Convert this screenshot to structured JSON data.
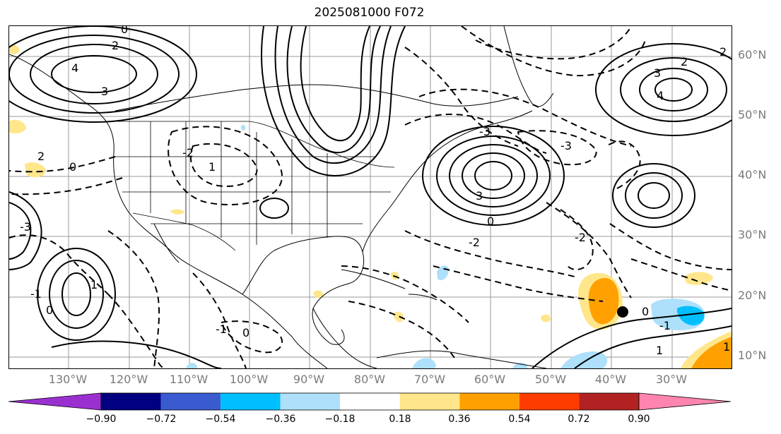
{
  "title": "2025081000 F072",
  "latitude_labels": [
    "60°N",
    "50°N",
    "40°N",
    "30°N",
    "20°N",
    "10°N"
  ],
  "longitude_labels": [
    "130°W",
    "120°W",
    "110°W",
    "100°W",
    "90°W",
    "80°W",
    "70°W",
    "60°W",
    "50°W",
    "40°W",
    "30°W"
  ],
  "colorbar": {
    "ticks": [
      "−0.90",
      "−0.72",
      "−0.54",
      "−0.36",
      "−0.18",
      "0.18",
      "0.36",
      "0.54",
      "0.72",
      "0.90"
    ],
    "colors": [
      "#9b30d0",
      "#000080",
      "#3a5bd0",
      "#00bfff",
      "#aee0fb",
      "#ffffff",
      "#ffe68a",
      "#ffa000",
      "#ff3c00",
      "#b22222",
      "#ff85b0"
    ]
  },
  "contour_labels": [
    "0",
    "2",
    "4",
    "3",
    "1",
    "-1",
    "-2",
    "-3",
    "0",
    "2",
    "3",
    "4",
    "2",
    "3",
    "0",
    "1",
    "-1",
    "-2",
    "-3",
    "2",
    "-3",
    "0",
    "1",
    "-1",
    "-2",
    "0",
    "1",
    "0"
  ],
  "marker": "storm-center-dot"
}
